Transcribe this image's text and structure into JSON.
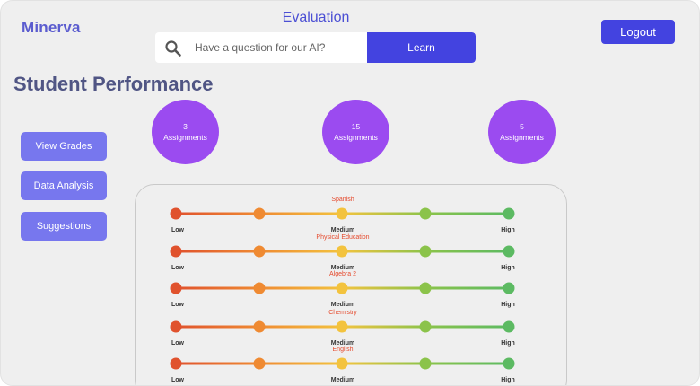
{
  "app": {
    "name": "Minerva"
  },
  "header": {
    "title": "Evaluation",
    "search": {
      "placeholder": "Have a question for our AI?",
      "value": "",
      "button_label": "Learn"
    },
    "logout_label": "Logout"
  },
  "page": {
    "title": "Student Performance"
  },
  "sidebar": {
    "buttons": [
      {
        "label": "View Grades"
      },
      {
        "label": "Data Analysis"
      },
      {
        "label": "Suggestions"
      }
    ]
  },
  "stats": [
    {
      "value": "3",
      "label": "Assignments"
    },
    {
      "value": "15",
      "label": "Assignments"
    },
    {
      "value": "5",
      "label": "Assignments"
    }
  ],
  "scale_labels": {
    "low": "Low",
    "medium": "Medium",
    "high": "High"
  },
  "subjects": [
    {
      "name": "Spanish"
    },
    {
      "name": "Physical Education"
    },
    {
      "name": "Algebra 2"
    },
    {
      "name": "Chemistry"
    },
    {
      "name": "English"
    }
  ],
  "colors": {
    "accent": "#4343e0",
    "sidebar_button": "#7777ee",
    "stat_circle": "#9b4bf0",
    "dot_colors": [
      "#e0522d",
      "#ef8a32",
      "#f3c33e",
      "#8bc34a",
      "#5cba62"
    ]
  },
  "icons": {
    "search": "search-icon"
  }
}
